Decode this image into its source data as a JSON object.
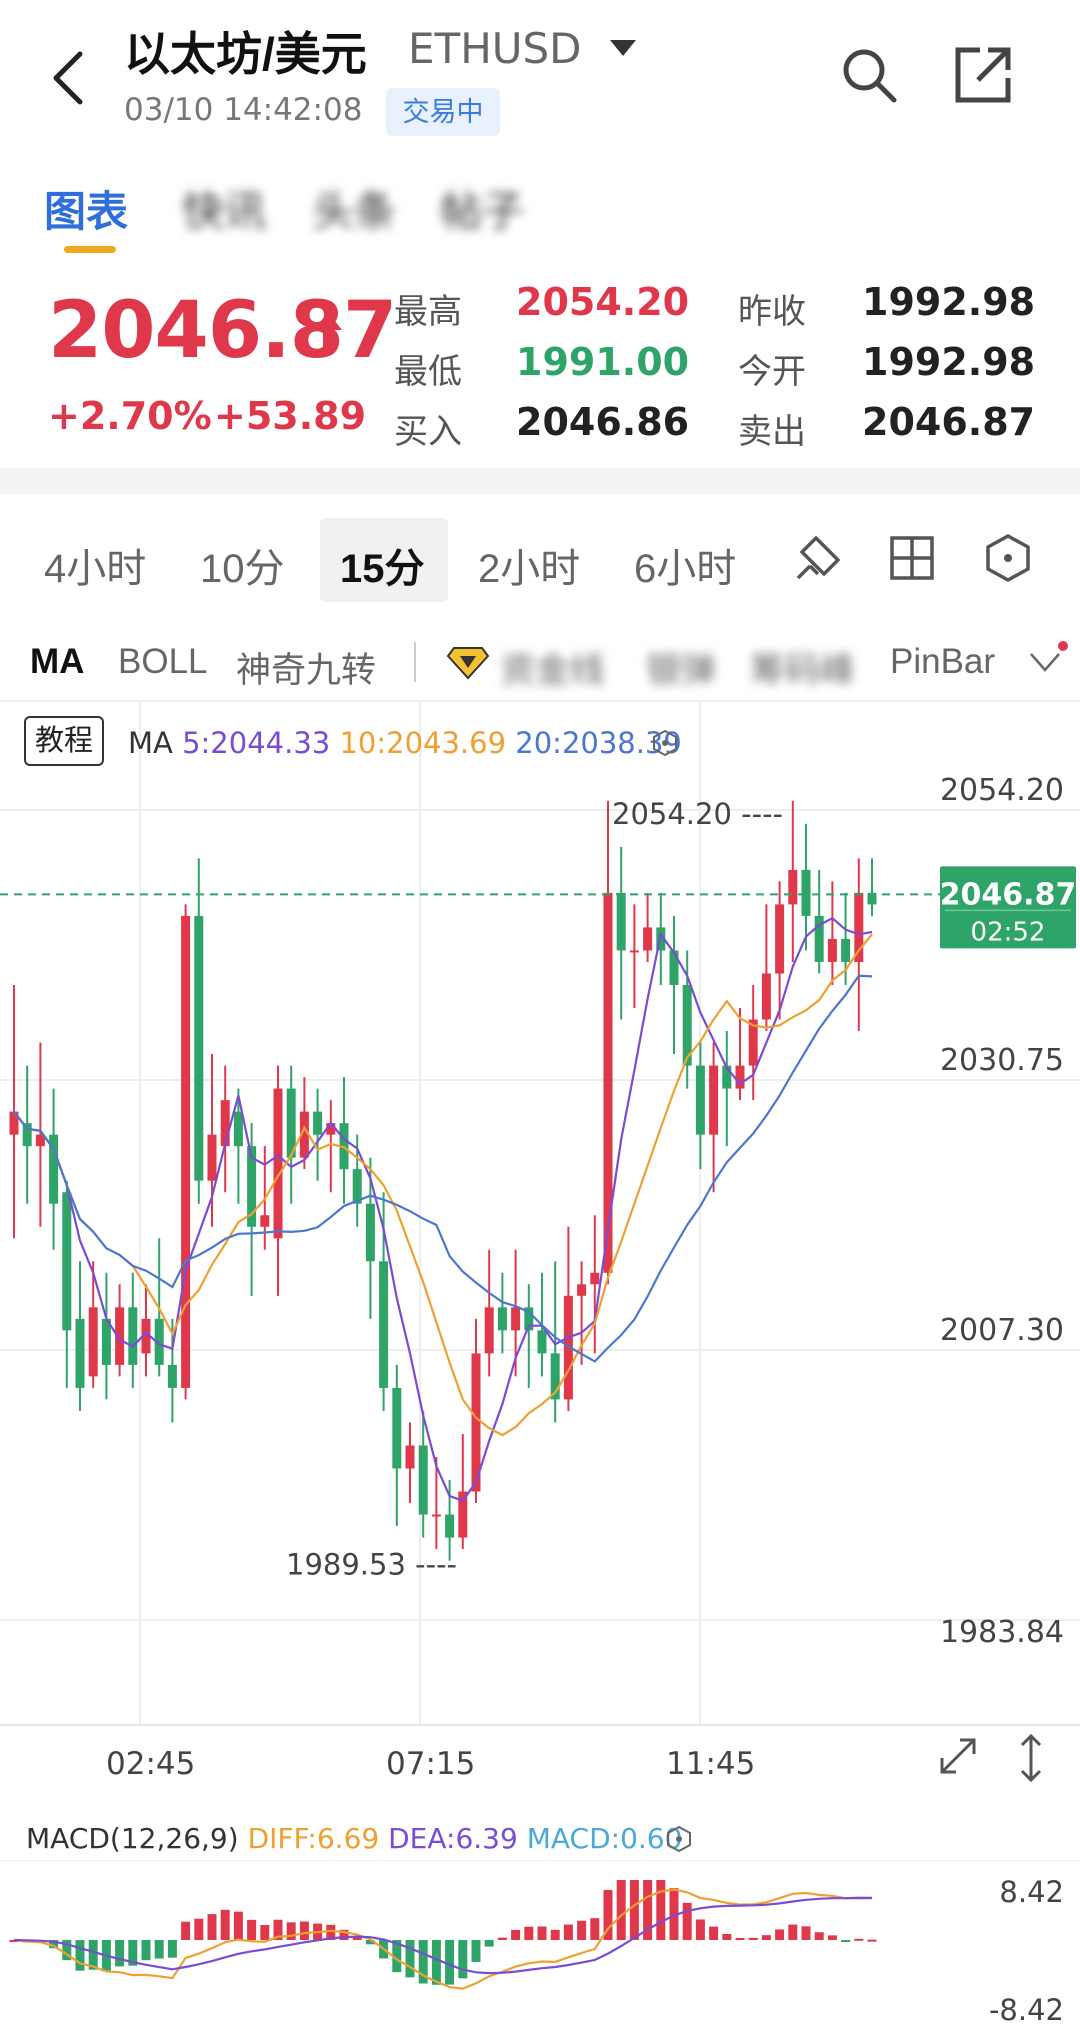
{
  "header": {
    "title": "以太坊/美元",
    "symbol": "ETHUSD",
    "datetime": "03/10 14:42:08",
    "status": "交易中"
  },
  "tabs": [
    "图表",
    "快讯",
    "头条",
    "帖子"
  ],
  "quote": {
    "price": "2046.87",
    "change_pct": "+2.70%",
    "change_abs": "+53.89",
    "high_label": "最高",
    "high": "2054.20",
    "low_label": "最低",
    "low": "1991.00",
    "bid_label": "买入",
    "bid": "2046.86",
    "prev_close_label": "昨收",
    "prev_close": "1992.98",
    "open_label": "今开",
    "open": "1992.98",
    "ask_label": "卖出",
    "ask": "2046.87"
  },
  "periods": [
    "4小时",
    "10分",
    "15分",
    "2小时",
    "6小时"
  ],
  "active_period": "15分",
  "indicators": [
    "MA",
    "BOLL",
    "神奇九转",
    "资金线",
    "银弹",
    "筹码峰",
    "PinBar"
  ],
  "chart_header": {
    "edu": "教程",
    "ma_label": "MA",
    "ma5": "5:2044.33",
    "ma10": "10:2043.69",
    "ma20": "20:2038.39"
  },
  "colors": {
    "up": "#e0384b",
    "down": "#2fa468",
    "ma5": "#7b4bd6",
    "ma10": "#f0a030",
    "ma20": "#4a78d0",
    "accent": "#2f6fdd"
  },
  "chart_data": {
    "type": "candlestick",
    "y_axis_labels": [
      "2054.20",
      "2030.75",
      "2007.30",
      "1983.84"
    ],
    "ylim": [
      1983.84,
      2054.2
    ],
    "x_labels": [
      "02:45",
      "07:15",
      "11:45"
    ],
    "high_marker": "2054.20",
    "low_marker": "1989.53",
    "last_price": "2046.87",
    "countdown": "02:52",
    "candles": [
      [
        2026,
        2028,
        2039,
        2017
      ],
      [
        2027,
        2025,
        2032,
        2020
      ],
      [
        2025,
        2026,
        2034,
        2018
      ],
      [
        2026,
        2020,
        2030,
        2016
      ],
      [
        2021,
        2009,
        2022,
        2004
      ],
      [
        2010,
        2004,
        2015,
        2002
      ],
      [
        2005,
        2011,
        2015,
        2004
      ],
      [
        2010,
        2006,
        2014,
        2003
      ],
      [
        2006,
        2011,
        2013,
        2005
      ],
      [
        2011,
        2006,
        2014,
        2004
      ],
      [
        2007,
        2010,
        2013,
        2005
      ],
      [
        2010,
        2006,
        2017,
        2005
      ],
      [
        2006,
        2004,
        2010,
        2001
      ],
      [
        2004,
        2045,
        2046,
        2003
      ],
      [
        2045,
        2022,
        2050,
        2020
      ],
      [
        2022,
        2026,
        2033,
        2018
      ],
      [
        2025,
        2029,
        2032,
        2021
      ],
      [
        2028,
        2025,
        2030,
        2020
      ],
      [
        2025,
        2018,
        2027,
        2012
      ],
      [
        2018,
        2019,
        2025,
        2016
      ],
      [
        2017,
        2030,
        2032,
        2012
      ],
      [
        2030,
        2024,
        2032,
        2020
      ],
      [
        2024,
        2028,
        2031,
        2023
      ],
      [
        2028,
        2026,
        2030,
        2022
      ],
      [
        2026,
        2027,
        2029,
        2021
      ],
      [
        2027,
        2023,
        2031,
        2020
      ],
      [
        2023,
        2020,
        2026,
        2018
      ],
      [
        2020,
        2015,
        2024,
        2010
      ],
      [
        2015,
        2004,
        2021,
        2002
      ],
      [
        2004,
        1997,
        2006,
        1992
      ],
      [
        1997,
        1999,
        2001,
        1994
      ],
      [
        1999,
        1993,
        2002,
        1991
      ],
      [
        1993,
        1993,
        1998,
        1990
      ],
      [
        1993,
        1991,
        1996,
        1989
      ],
      [
        1991,
        1995,
        2000,
        1990
      ],
      [
        1995,
        2007,
        2010,
        1994
      ],
      [
        2007,
        2011,
        2016,
        2005
      ],
      [
        2011,
        2009,
        2014,
        2007
      ],
      [
        2009,
        2011,
        2016,
        2005
      ],
      [
        2011,
        2009,
        2013,
        2004
      ],
      [
        2009,
        2007,
        2014,
        2005
      ],
      [
        2007,
        2003,
        2015,
        2001
      ],
      [
        2003,
        2012,
        2018,
        2002
      ],
      [
        2012,
        2013,
        2015,
        2006
      ],
      [
        2013,
        2014,
        2019,
        2007
      ],
      [
        2014,
        2047,
        2055,
        2013
      ],
      [
        2047,
        2042,
        2051,
        2036
      ],
      [
        2042,
        2042,
        2046,
        2037
      ],
      [
        2042,
        2044,
        2047,
        2041
      ],
      [
        2044,
        2042,
        2047,
        2039
      ],
      [
        2042,
        2039,
        2045,
        2033
      ],
      [
        2039,
        2032,
        2042,
        2030
      ],
      [
        2032,
        2026,
        2034,
        2023
      ],
      [
        2026,
        2032,
        2034,
        2021
      ],
      [
        2032,
        2030,
        2035,
        2025
      ],
      [
        2030,
        2032,
        2037,
        2029
      ],
      [
        2032,
        2036,
        2039,
        2029
      ],
      [
        2036,
        2040,
        2046,
        2035
      ],
      [
        2040,
        2046,
        2048,
        2036
      ],
      [
        2046,
        2049,
        2055,
        2041
      ],
      [
        2049,
        2045,
        2053,
        2042
      ],
      [
        2045,
        2041,
        2049,
        2040
      ],
      [
        2041,
        2043,
        2048,
        2039
      ],
      [
        2043,
        2041,
        2047,
        2039
      ],
      [
        2041,
        2047,
        2050,
        2035
      ],
      [
        2047,
        2046,
        2050,
        2045
      ]
    ],
    "macd": {
      "label": "MACD(12,26,9)",
      "diff": "DIFF:6.69",
      "dea": "DEA:6.39",
      "macd": "MACD:0.60",
      "y_labels": [
        "8.42",
        "-8.42"
      ]
    }
  }
}
